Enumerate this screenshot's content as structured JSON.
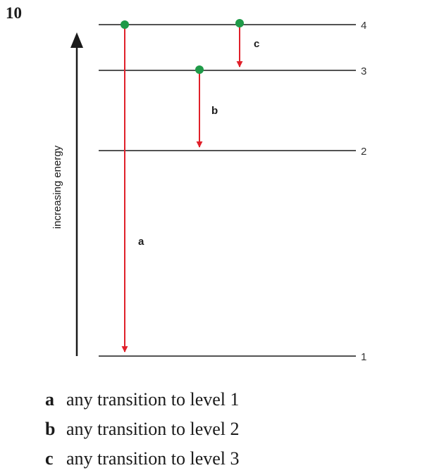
{
  "question_number": "10",
  "axis_label": "increasing energy",
  "levels": [
    {
      "n": 1,
      "label": "1"
    },
    {
      "n": 2,
      "label": "2"
    },
    {
      "n": 3,
      "label": "3"
    },
    {
      "n": 4,
      "label": "4"
    }
  ],
  "transitions": [
    {
      "label": "a",
      "from_level": 4,
      "to_level": 1
    },
    {
      "label": "b",
      "from_level": 3,
      "to_level": 2
    },
    {
      "label": "c",
      "from_level": 4,
      "to_level": 3
    }
  ],
  "answers": [
    {
      "letter": "a",
      "text": "any transition to level 1"
    },
    {
      "letter": "b",
      "text": "any transition to level 2"
    },
    {
      "letter": "c",
      "text": "any transition to level 3"
    }
  ],
  "colors": {
    "arrow": "#e0202a",
    "dot": "#1f9a48",
    "line": "#1a1a1a"
  }
}
